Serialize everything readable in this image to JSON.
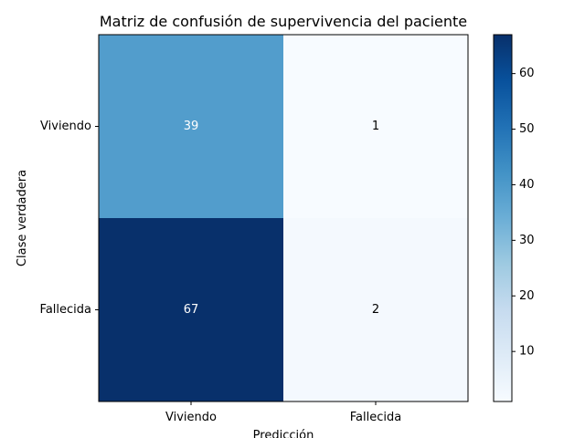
{
  "chart_data": {
    "type": "heatmap",
    "title": "Matriz de confusión de supervivencia del paciente",
    "xlabel": "Predicción",
    "ylabel": "Clase verdadera",
    "x_categories": [
      "Viviendo",
      "Fallecida"
    ],
    "y_categories": [
      "Viviendo",
      "Fallecida"
    ],
    "values": [
      [
        39,
        1
      ],
      [
        67,
        2
      ]
    ],
    "colormap": "Blues",
    "color_range": [
      1,
      67
    ],
    "colorbar_ticks": [
      10,
      20,
      30,
      40,
      50,
      60
    ],
    "grid": false
  },
  "colors": {
    "low": "#f7fbff",
    "high": "#08306b",
    "text_light": "#ffffff",
    "text_dark": "#000000"
  }
}
